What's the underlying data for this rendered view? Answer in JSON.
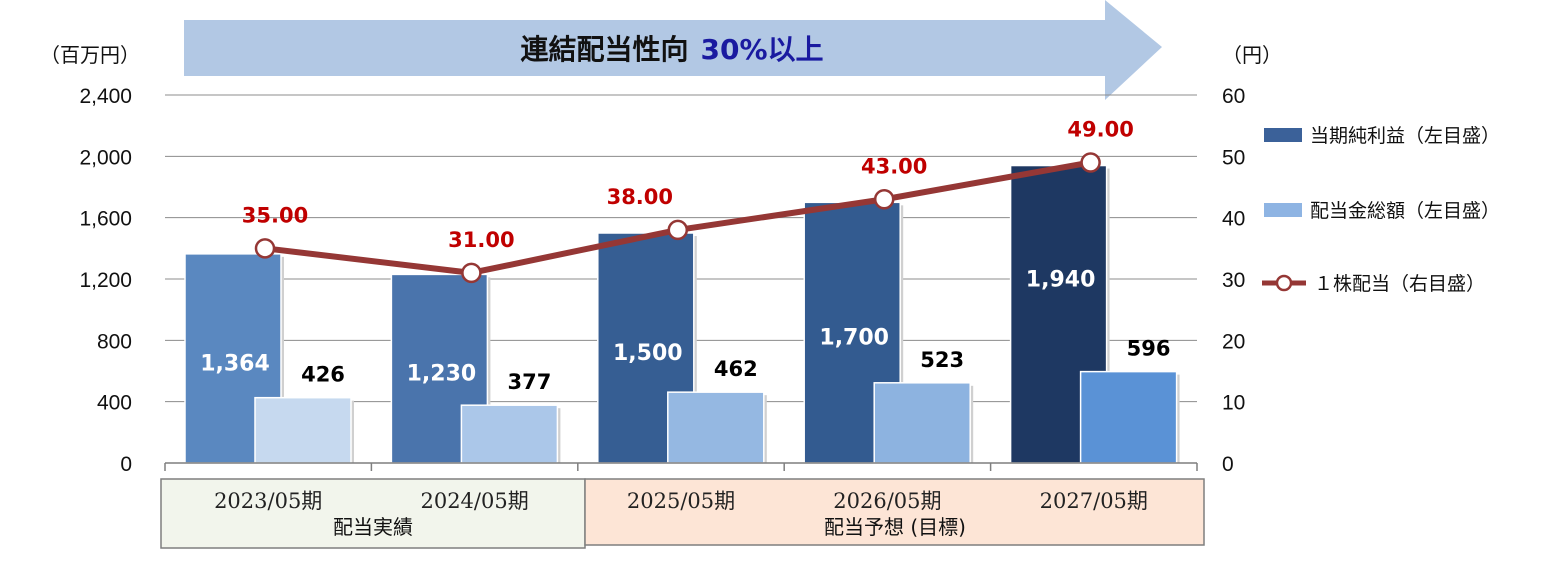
{
  "banner": {
    "text": "連結配当性向",
    "highlight": "30%以上"
  },
  "chart_data": {
    "type": "bar",
    "categories": [
      "2023/05期",
      "2024/05期",
      "2025/05期",
      "2026/05期",
      "2027/05期"
    ],
    "groups": [
      {
        "label": "配当実績",
        "categories": [
          "2023/05期",
          "2024/05期"
        ]
      },
      {
        "label": "配当予想 (目標)",
        "categories": [
          "2025/05期",
          "2026/05期",
          "2027/05期"
        ]
      }
    ],
    "y_left": {
      "unit": "（百万円）",
      "ticks": [
        "0",
        "400",
        "800",
        "1,200",
        "1,600",
        "2,000",
        "2,400"
      ],
      "ylim": [
        0,
        2400
      ]
    },
    "y_right": {
      "unit": "（円）",
      "ticks": [
        "0",
        "10",
        "20",
        "30",
        "40",
        "50",
        "60"
      ],
      "ylim": [
        0,
        60
      ]
    },
    "series": [
      {
        "name": "当期純利益（左目盛）",
        "type": "bar",
        "axis": "left",
        "values": [
          1364,
          1230,
          1500,
          1700,
          1940
        ],
        "labels": [
          "1,364",
          "1,230",
          "1,500",
          "1,700",
          "1,940"
        ],
        "colors": [
          "#5a88c0",
          "#4a74ac",
          "#365e93",
          "#335b90",
          "#1e3862"
        ],
        "legend_color": "#3b6199"
      },
      {
        "name": "配当金総額（左目盛）",
        "type": "bar",
        "axis": "left",
        "values": [
          426,
          377,
          462,
          523,
          596
        ],
        "labels": [
          "426",
          "377",
          "462",
          "523",
          "596"
        ],
        "colors": [
          "#c6d9ef",
          "#abc7e9",
          "#95b8e2",
          "#8db3e0",
          "#5a92d6"
        ],
        "legend_color": "#8eb4e3"
      },
      {
        "name": "１株配当（右目盛）",
        "type": "line",
        "axis": "right",
        "values": [
          35,
          31,
          38,
          43,
          49
        ],
        "labels": [
          "35.00",
          "31.00",
          "38.00",
          "43.00",
          "49.00"
        ],
        "color": "#953735"
      }
    ],
    "grid": true,
    "legend_position": "right"
  }
}
